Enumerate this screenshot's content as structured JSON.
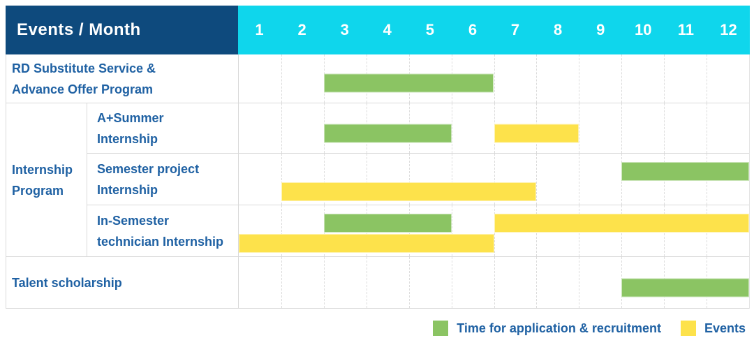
{
  "header": {
    "title": "Events / Month",
    "months": [
      "1",
      "2",
      "3",
      "4",
      "5",
      "6",
      "7",
      "8",
      "9",
      "10",
      "11",
      "12"
    ]
  },
  "colors": {
    "header_bg": "#0e4a7d",
    "month_header_bg": "#0fd6ec",
    "header_text": "#ffffff",
    "label_text": "#1f61a3",
    "bar_green": "#8bc463",
    "bar_yellow": "#fde24b",
    "grid_line": "#d9d9d9"
  },
  "legend": [
    {
      "color_key": "bar_green",
      "label": "Time for application & recruitment"
    },
    {
      "color_key": "bar_yellow",
      "label": "Events"
    }
  ],
  "chart_data": {
    "type": "gantt",
    "title": "Events / Month",
    "x_axis": {
      "unit": "month",
      "ticks": [
        1,
        2,
        3,
        4,
        5,
        6,
        7,
        8,
        9,
        10,
        11,
        12
      ]
    },
    "legend_entries": [
      "Time for application & recruitment",
      "Events"
    ],
    "groups": [
      {
        "label": "Internship Program",
        "label_lines": [
          "Internship",
          "Program"
        ],
        "row_indexes": [
          1,
          2,
          3
        ]
      }
    ],
    "rows": [
      {
        "group": null,
        "event": "RD Substitute Service & Advance Offer Program",
        "label_lines": [
          "RD Substitute Service &",
          "Advance Offer Program"
        ],
        "bars": [
          {
            "series": "Time for application & recruitment",
            "color": "green",
            "start_month": 3,
            "end_month": 6,
            "lane": "single"
          }
        ]
      },
      {
        "group": "Internship Program",
        "event": "A+Summer Internship",
        "label_lines": [
          "A+Summer",
          "Internship"
        ],
        "bars": [
          {
            "series": "Time for application & recruitment",
            "color": "green",
            "start_month": 3,
            "end_month": 5,
            "lane": "single"
          },
          {
            "series": "Events",
            "color": "yellow",
            "start_month": 7,
            "end_month": 8,
            "lane": "single"
          }
        ]
      },
      {
        "group": "Internship Program",
        "event": "Semester project Internship",
        "label_lines": [
          "Semester project",
          "Internship"
        ],
        "bars": [
          {
            "series": "Time for application & recruitment",
            "color": "green",
            "start_month": 10,
            "end_month": 12,
            "lane": "top"
          },
          {
            "series": "Events",
            "color": "yellow",
            "start_month": 2,
            "end_month": 7,
            "lane": "bottom"
          }
        ]
      },
      {
        "group": "Internship Program",
        "event": "In-Semester technician Internship",
        "label_lines": [
          "In-Semester",
          "technician Internship"
        ],
        "bars": [
          {
            "series": "Time for application & recruitment",
            "color": "green",
            "start_month": 3,
            "end_month": 5,
            "lane": "top"
          },
          {
            "series": "Events",
            "color": "yellow",
            "start_month": 7,
            "end_month": 12,
            "lane": "top"
          },
          {
            "series": "Events",
            "color": "yellow",
            "start_month": 1,
            "end_month": 6,
            "lane": "bottom"
          }
        ]
      },
      {
        "group": null,
        "event": "Talent scholarship",
        "label_lines": [
          "Talent scholarship"
        ],
        "bars": [
          {
            "series": "Time for application & recruitment",
            "color": "green",
            "start_month": 10,
            "end_month": 12,
            "lane": "single"
          }
        ]
      }
    ]
  }
}
